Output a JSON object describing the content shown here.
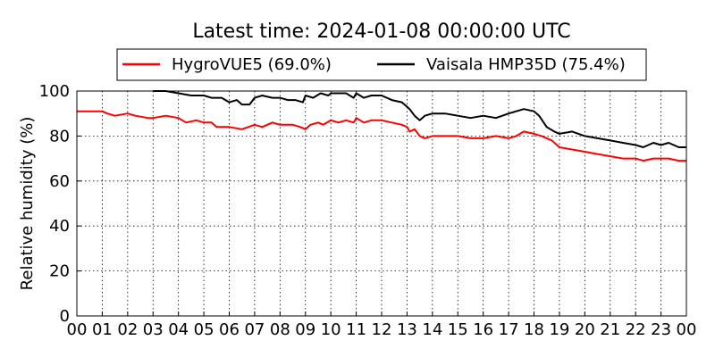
{
  "chart_data": {
    "type": "line",
    "title": "Latest time: 2024-01-08 00:00:00 UTC",
    "xlabel": "",
    "ylabel": "Relative humidity (%)",
    "xlim": [
      0,
      24
    ],
    "ylim": [
      0,
      100
    ],
    "x_ticks": [
      "00",
      "01",
      "02",
      "03",
      "04",
      "05",
      "06",
      "07",
      "08",
      "09",
      "10",
      "11",
      "12",
      "13",
      "14",
      "15",
      "16",
      "17",
      "18",
      "19",
      "20",
      "21",
      "22",
      "23",
      "00"
    ],
    "y_ticks": [
      0,
      20,
      40,
      60,
      80,
      100
    ],
    "grid": true,
    "legend_position": "top-center, above plot",
    "series": [
      {
        "name": "HygroVUE5 (69.0%)",
        "color": "#ff0000",
        "x": [
          0,
          0.5,
          1,
          1.2,
          1.5,
          2,
          2.3,
          2.8,
          3,
          3.5,
          4,
          4.3,
          4.7,
          5,
          5.3,
          5.5,
          6,
          6.5,
          7,
          7.3,
          7.7,
          8,
          8.5,
          8.8,
          9,
          9.2,
          9.5,
          9.7,
          10,
          10.3,
          10.6,
          10.9,
          11,
          11.3,
          11.6,
          12,
          12.4,
          12.8,
          13,
          13.1,
          13.3,
          13.5,
          13.7,
          14,
          14.5,
          15,
          15.5,
          16,
          16.5,
          17,
          17.3,
          17.6,
          18,
          18.3,
          18.7,
          19,
          19.5,
          20,
          20.5,
          21,
          21.5,
          22,
          22.3,
          22.7,
          23,
          23.3,
          23.7,
          24
        ],
        "y": [
          91,
          91,
          91,
          90,
          89,
          90,
          89,
          88,
          88,
          89,
          88,
          86,
          87,
          86,
          86,
          84,
          84,
          83,
          85,
          84,
          86,
          85,
          85,
          84,
          83,
          85,
          86,
          85,
          87,
          86,
          87,
          86,
          88,
          86,
          87,
          87,
          86,
          85,
          84,
          82,
          83,
          80,
          79,
          80,
          80,
          80,
          79,
          79,
          80,
          79,
          80,
          82,
          81,
          80,
          78,
          75,
          74,
          73,
          72,
          71,
          70,
          70,
          69,
          70,
          70,
          70,
          69,
          69
        ]
      },
      {
        "name": "Vaisala HMP35D (75.4%)",
        "color": "#000000",
        "x": [
          3,
          3.5,
          4,
          4.5,
          5,
          5.3,
          5.7,
          6,
          6.3,
          6.5,
          6.8,
          7,
          7.3,
          7.7,
          8,
          8.3,
          8.6,
          8.9,
          9,
          9.3,
          9.6,
          9.9,
          10,
          10.3,
          10.6,
          10.9,
          11,
          11.3,
          11.6,
          12,
          12.4,
          12.8,
          13,
          13.1,
          13.3,
          13.5,
          13.7,
          14,
          14.5,
          15,
          15.5,
          16,
          16.5,
          17,
          17.3,
          17.6,
          18,
          18.2,
          18.5,
          18.8,
          19,
          19.5,
          20,
          20.5,
          21,
          21.5,
          22,
          22.3,
          22.7,
          23,
          23.3,
          23.7,
          24
        ],
        "y": [
          100,
          100,
          99,
          98,
          98,
          97,
          97,
          95,
          96,
          94,
          94,
          97,
          98,
          97,
          97,
          96,
          96,
          95,
          98,
          97,
          99,
          98,
          99,
          99,
          99,
          97,
          99,
          97,
          98,
          98,
          96,
          95,
          93,
          92,
          89,
          87,
          89,
          90,
          90,
          89,
          88,
          89,
          88,
          90,
          91,
          92,
          91,
          89,
          84,
          82,
          81,
          82,
          80,
          79,
          78,
          77,
          76,
          75,
          77,
          76,
          77,
          75,
          75
        ]
      }
    ]
  }
}
